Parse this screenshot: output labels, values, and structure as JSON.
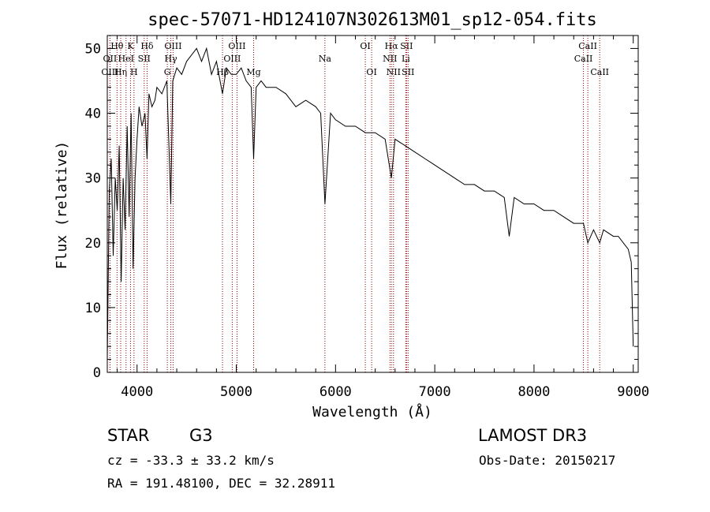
{
  "chart_data": {
    "type": "line",
    "title": "spec-57071-HD124107N302613M01_sp12-054.fits",
    "xlabel": "Wavelength (Å)",
    "ylabel": "Flux (relative)",
    "xlim": [
      3700,
      9050
    ],
    "ylim": [
      0,
      52
    ],
    "xticks": [
      4000,
      5000,
      6000,
      7000,
      8000,
      9000
    ],
    "yticks": [
      0,
      10,
      20,
      30,
      40,
      50
    ],
    "grid": false,
    "line_color": "#000000",
    "marker_color": "#8b0000",
    "series": [
      {
        "name": "spectrum",
        "x": [
          3700,
          3720,
          3740,
          3760,
          3780,
          3800,
          3820,
          3840,
          3860,
          3880,
          3900,
          3920,
          3940,
          3960,
          3980,
          4000,
          4020,
          4050,
          4080,
          4101,
          4120,
          4150,
          4180,
          4200,
          4250,
          4300,
          4340,
          4360,
          4400,
          4450,
          4500,
          4550,
          4600,
          4650,
          4700,
          4750,
          4800,
          4861,
          4900,
          4950,
          5000,
          5050,
          5100,
          5150,
          5175,
          5200,
          5250,
          5300,
          5400,
          5500,
          5600,
          5700,
          5800,
          5850,
          5893,
          5950,
          6000,
          6100,
          6200,
          6300,
          6400,
          6500,
          6563,
          6600,
          6700,
          6800,
          6900,
          7000,
          7100,
          7200,
          7300,
          7400,
          7500,
          7600,
          7700,
          7750,
          7800,
          7900,
          8000,
          8100,
          8200,
          8300,
          8400,
          8498,
          8542,
          8600,
          8662,
          8700,
          8800,
          8850,
          8900,
          8950,
          8980,
          9000
        ],
        "y": [
          2,
          28,
          33,
          18,
          30,
          25,
          35,
          14,
          30,
          22,
          38,
          24,
          40,
          16,
          30,
          36,
          41,
          38,
          40,
          33,
          43,
          41,
          42,
          44,
          43,
          45,
          26,
          45,
          47,
          46,
          48,
          49,
          50,
          48,
          50,
          46,
          48,
          43,
          47,
          46,
          46,
          47,
          45,
          44,
          33,
          44,
          45,
          44,
          44,
          43,
          41,
          42,
          41,
          40,
          26,
          40,
          39,
          38,
          38,
          37,
          37,
          36,
          30,
          36,
          35,
          34,
          33,
          32,
          31,
          30,
          29,
          29,
          28,
          28,
          27,
          21,
          27,
          26,
          26,
          25,
          25,
          24,
          23,
          23,
          20,
          22,
          20,
          22,
          21,
          21,
          20,
          19,
          17,
          4
        ]
      }
    ],
    "line_markers": [
      {
        "name": "Hθ",
        "x": 3798,
        "row": 0
      },
      {
        "name": "OII",
        "x": 3727,
        "row": 1
      },
      {
        "name": "OIII",
        "x": 3727,
        "row": 2
      },
      {
        "name": "Hη",
        "x": 3835,
        "row": 2
      },
      {
        "name": "K",
        "x": 3934,
        "row": 0
      },
      {
        "name": "HeI",
        "x": 3889,
        "row": 1
      },
      {
        "name": "H",
        "x": 3969,
        "row": 2
      },
      {
        "name": "Hδ",
        "x": 4101,
        "row": 0
      },
      {
        "name": "SII",
        "x": 4072,
        "row": 1
      },
      {
        "name": "OIII",
        "x": 4363,
        "row": 0
      },
      {
        "name": "Hγ",
        "x": 4340,
        "row": 1
      },
      {
        "name": "G",
        "x": 4305,
        "row": 2
      },
      {
        "name": "OIII",
        "x": 5007,
        "row": 0
      },
      {
        "name": "OIII",
        "x": 4959,
        "row": 1
      },
      {
        "name": "Hβ",
        "x": 4861,
        "row": 2
      },
      {
        "name": "Mg",
        "x": 5175,
        "row": 2
      },
      {
        "name": "Na",
        "x": 5893,
        "row": 1
      },
      {
        "name": "OI",
        "x": 6300,
        "row": 0
      },
      {
        "name": "OI",
        "x": 6364,
        "row": 2
      },
      {
        "name": "Hα",
        "x": 6563,
        "row": 0
      },
      {
        "name": "SII",
        "x": 6716,
        "row": 0
      },
      {
        "name": "NII",
        "x": 6548,
        "row": 1
      },
      {
        "name": "Li",
        "x": 6708,
        "row": 1
      },
      {
        "name": "NII",
        "x": 6584,
        "row": 2
      },
      {
        "name": "SII",
        "x": 6731,
        "row": 2
      },
      {
        "name": "CaII",
        "x": 8542,
        "row": 0
      },
      {
        "name": "CaII",
        "x": 8498,
        "row": 1
      },
      {
        "name": "CaII",
        "x": 8662,
        "row": 2
      }
    ]
  },
  "info": {
    "object_type": "STAR",
    "subclass": "G3",
    "redshift": "cz = -33.3 ± 33.2 km/s",
    "coords": "RA = 191.48100, DEC =  32.28911",
    "survey": "LAMOST DR3",
    "obs_date": "Obs-Date: 20150217"
  }
}
